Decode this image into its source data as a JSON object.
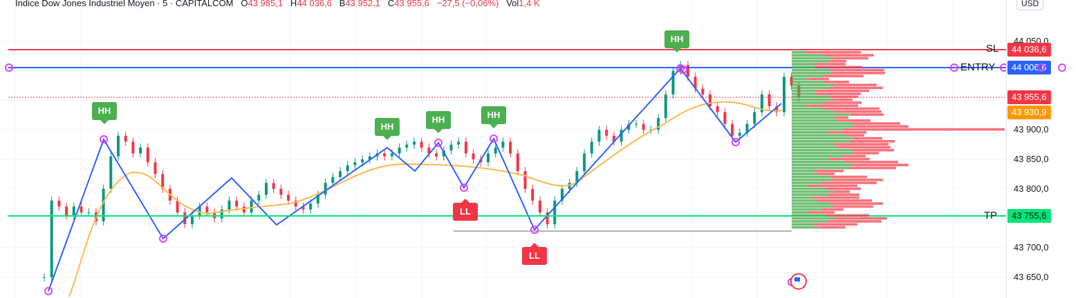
{
  "legend": {
    "symbol": "Indice Dow Jones Industriel Moyen · 5 · CAPITALCOM",
    "open_label": "O",
    "open": "43 985,1",
    "high_label": "H",
    "high": "44 036,6",
    "low_label": "B",
    "low": "43 952,1",
    "close_label": "C",
    "close": "43 955,6",
    "change": "−27,5 (−0,06%)",
    "vol_label": "Vol",
    "vol": "1,4 K"
  },
  "axis": {
    "currency": "USD",
    "ticks": [
      "44 050,0",
      "43 900,0",
      "43 850,0",
      "43 800,0",
      "43 700,0",
      "43 650,0"
    ]
  },
  "levels": {
    "sl": {
      "label": "SL",
      "price": "44 036,6",
      "color": "#f23645"
    },
    "entry": {
      "label": "ENTRY",
      "price": "44 006,6",
      "color": "#2962ff"
    },
    "last": {
      "price": "43 955,6",
      "color": "#f23645"
    },
    "ma": {
      "price": "43 930,9",
      "color": "#ff9800"
    },
    "tp": {
      "label": "TP",
      "price": "43 755,6",
      "color": "#00e676"
    }
  },
  "pivots": {
    "hh1": "HH",
    "hh2": "HH",
    "hh3": "HH",
    "hh4": "HH",
    "hh5": "HH",
    "ll1": "LL",
    "ll2": "LL"
  },
  "icons": {
    "flag": "us-flag-icon",
    "settings": "volume-profile-icon"
  }
}
